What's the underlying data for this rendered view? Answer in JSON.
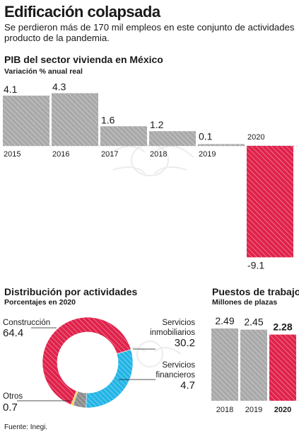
{
  "headline": "Edificación colapsada",
  "deck": "Se perdieron más de 170 mil empleos en este conjunto de actividades producto de la pandemia.",
  "source": "Fuente: Inegi.",
  "colors": {
    "gray": "#a9a9a9",
    "red": "#e0224b",
    "blue": "#23b5e6",
    "yellow": "#f4c92a",
    "dark_gray": "#8c8c8c"
  },
  "chart_data": [
    {
      "type": "bar",
      "title": "PIB del sector vivienda en México",
      "subtitle": "Variación % anual real",
      "categories": [
        "2015",
        "2016",
        "2017",
        "2018",
        "2019",
        "2020"
      ],
      "values": [
        4.1,
        4.3,
        1.6,
        1.2,
        0.1,
        -9.1
      ],
      "value_labels": [
        "4.1",
        "4.3",
        "1.6",
        "1.2",
        "0.1",
        "-9.1"
      ],
      "highlight": "2020"
    },
    {
      "type": "pie",
      "title": "Distribución por actividades",
      "subtitle": "Porcentajes en 2020",
      "slices": [
        {
          "label": "Construcción",
          "value": 64.4,
          "value_label": "64.4",
          "color": "#e0224b"
        },
        {
          "label": "Servicios inmobiliarios",
          "value": 30.2,
          "value_label": "30.2",
          "color": "#23b5e6"
        },
        {
          "label": "Servicios financieros",
          "value": 4.7,
          "value_label": "4.7",
          "color": "#8c8c8c"
        },
        {
          "label": "Otros",
          "value": 0.7,
          "value_label": "0.7",
          "color": "#f4c92a"
        }
      ]
    },
    {
      "type": "bar",
      "title": "Puestos de trabajo",
      "subtitle": "Millones de plazas",
      "categories": [
        "2018",
        "2019",
        "2020"
      ],
      "values": [
        2.49,
        2.45,
        2.28
      ],
      "value_labels": [
        "2.49",
        "2.45",
        "2.28"
      ],
      "highlight": "2020"
    }
  ]
}
